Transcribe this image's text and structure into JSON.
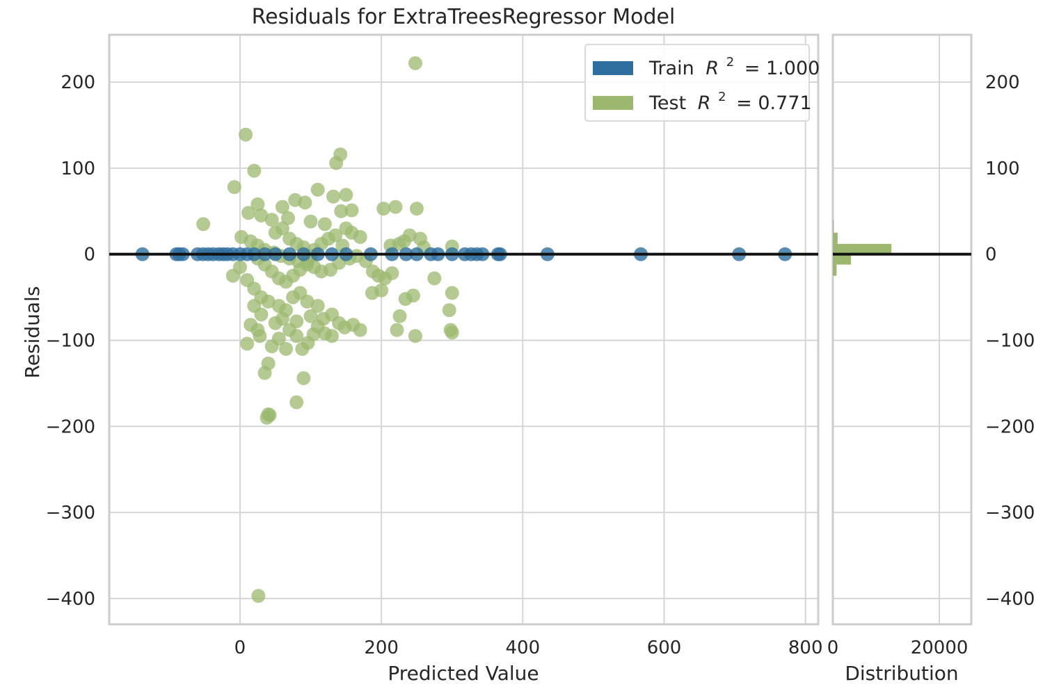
{
  "chart_data": {
    "type": "scatter",
    "title": "Residuals for ExtraTreesRegressor Model",
    "xlabel": "Predicted Value",
    "ylabel": "Residuals",
    "xlim": [
      -185,
      818
    ],
    "ylim": [
      -430,
      255
    ],
    "xticks": [
      "0",
      "200",
      "400",
      "600",
      "800"
    ],
    "xtick_values": [
      0,
      200,
      400,
      600,
      800
    ],
    "yticks": [
      "200",
      "100",
      "0",
      "−100",
      "−200",
      "−300",
      "−400"
    ],
    "ytick_values": [
      200,
      100,
      0,
      -100,
      -200,
      -300,
      -400
    ],
    "grid": true,
    "legend_position": "top-right",
    "colors": {
      "train": "#2f6f9f",
      "test": "#9bb86e",
      "zero_line": "#111111",
      "grid": "#d5d5d5"
    },
    "legend": [
      {
        "label": "Train",
        "r2_symbol": "R",
        "r2_exp": "2",
        "r2_value": "= 1.000",
        "color": "#2f6f9f"
      },
      {
        "label": "Test",
        "r2_symbol": "R",
        "r2_exp": "2",
        "r2_value": "= 0.771",
        "color": "#9bb86e"
      }
    ],
    "series": [
      {
        "name": "Train",
        "points": [
          [
            -138,
            0
          ],
          [
            -90,
            0
          ],
          [
            -86,
            0
          ],
          [
            -81,
            0
          ],
          [
            -60,
            0
          ],
          [
            -52,
            0
          ],
          [
            -45,
            0
          ],
          [
            -38,
            0
          ],
          [
            -30,
            0
          ],
          [
            -24,
            0
          ],
          [
            -18,
            0
          ],
          [
            -10,
            0
          ],
          [
            0,
            0
          ],
          [
            10,
            0
          ],
          [
            20,
            0
          ],
          [
            35,
            0
          ],
          [
            50,
            0
          ],
          [
            70,
            0
          ],
          [
            90,
            0
          ],
          [
            110,
            0
          ],
          [
            130,
            0
          ],
          [
            150,
            0
          ],
          [
            185,
            0
          ],
          [
            215,
            0
          ],
          [
            235,
            0
          ],
          [
            250,
            0
          ],
          [
            270,
            0
          ],
          [
            280,
            0
          ],
          [
            300,
            0
          ],
          [
            318,
            0
          ],
          [
            327,
            0
          ],
          [
            335,
            0
          ],
          [
            343,
            0
          ],
          [
            365,
            0
          ],
          [
            368,
            0
          ],
          [
            435,
            0
          ],
          [
            567,
            0
          ],
          [
            706,
            0
          ],
          [
            771,
            0
          ]
        ]
      },
      {
        "name": "Test",
        "points": [
          [
            248,
            222
          ],
          [
            8,
            139
          ],
          [
            20,
            97
          ],
          [
            -8,
            78
          ],
          [
            142,
            116
          ],
          [
            136,
            106
          ],
          [
            110,
            75
          ],
          [
            150,
            69
          ],
          [
            132,
            67
          ],
          [
            78,
            63
          ],
          [
            92,
            60
          ],
          [
            25,
            58
          ],
          [
            60,
            55
          ],
          [
            220,
            55
          ],
          [
            203,
            53
          ],
          [
            250,
            53
          ],
          [
            158,
            51
          ],
          [
            143,
            50
          ],
          [
            -52,
            35
          ],
          [
            12,
            48
          ],
          [
            30,
            45
          ],
          [
            45,
            40
          ],
          [
            68,
            42
          ],
          [
            100,
            38
          ],
          [
            120,
            35
          ],
          [
            150,
            30
          ],
          [
            158,
            25
          ],
          [
            170,
            20
          ],
          [
            240,
            22
          ],
          [
            255,
            18
          ],
          [
            232,
            15
          ],
          [
            213,
            10
          ],
          [
            225,
            12
          ],
          [
            260,
            8
          ],
          [
            300,
            9
          ],
          [
            2,
            20
          ],
          [
            15,
            15
          ],
          [
            25,
            10
          ],
          [
            35,
            5
          ],
          [
            48,
            2
          ],
          [
            58,
            -2
          ],
          [
            70,
            -5
          ],
          [
            82,
            -8
          ],
          [
            95,
            -12
          ],
          [
            105,
            -15
          ],
          [
            115,
            -20
          ],
          [
            128,
            -18
          ],
          [
            140,
            -10
          ],
          [
            155,
            -5
          ],
          [
            165,
            -2
          ],
          [
            178,
            -8
          ],
          [
            188,
            -20
          ],
          [
            196,
            -25
          ],
          [
            205,
            -28
          ],
          [
            215,
            -22
          ],
          [
            187,
            -45
          ],
          [
            200,
            -42
          ],
          [
            -10,
            -25
          ],
          [
            0,
            -15
          ],
          [
            10,
            -30
          ],
          [
            20,
            -40
          ],
          [
            30,
            -50
          ],
          [
            40,
            -55
          ],
          [
            55,
            -60
          ],
          [
            65,
            -65
          ],
          [
            75,
            -50
          ],
          [
            85,
            -45
          ],
          [
            95,
            -55
          ],
          [
            110,
            -60
          ],
          [
            118,
            -75
          ],
          [
            130,
            -70
          ],
          [
            140,
            -80
          ],
          [
            148,
            -85
          ],
          [
            160,
            -82
          ],
          [
            170,
            -88
          ],
          [
            300,
            -45
          ],
          [
            296,
            -65
          ],
          [
            298,
            -88
          ],
          [
            300,
            -91
          ],
          [
            234,
            -52
          ],
          [
            226,
            -72
          ],
          [
            275,
            -28
          ],
          [
            245,
            -48
          ],
          [
            222,
            -88
          ],
          [
            248,
            -95
          ],
          [
            10,
            -104
          ],
          [
            28,
            -95
          ],
          [
            45,
            -107
          ],
          [
            55,
            -98
          ],
          [
            65,
            -110
          ],
          [
            80,
            -95
          ],
          [
            88,
            -110
          ],
          [
            96,
            -103
          ],
          [
            104,
            -93
          ],
          [
            40,
            -127
          ],
          [
            35,
            -138
          ],
          [
            90,
            -144
          ],
          [
            38,
            -190
          ],
          [
            40,
            -186
          ],
          [
            42,
            -187
          ],
          [
            80,
            -172
          ],
          [
            26,
            -397
          ],
          [
            25,
            -5
          ],
          [
            35,
            -12
          ],
          [
            45,
            -20
          ],
          [
            55,
            -28
          ],
          [
            65,
            -32
          ],
          [
            75,
            -25
          ],
          [
            85,
            -18
          ],
          [
            95,
            -8
          ],
          [
            105,
            5
          ],
          [
            115,
            12
          ],
          [
            125,
            18
          ],
          [
            135,
            22
          ],
          [
            145,
            10
          ],
          [
            50,
            25
          ],
          [
            60,
            30
          ],
          [
            70,
            18
          ],
          [
            80,
            12
          ],
          [
            90,
            8
          ],
          [
            100,
            -2
          ],
          [
            20,
            -60
          ],
          [
            30,
            -70
          ],
          [
            50,
            -80
          ],
          [
            60,
            -75
          ],
          [
            70,
            -88
          ],
          [
            80,
            -78
          ],
          [
            100,
            -72
          ],
          [
            110,
            -84
          ],
          [
            120,
            -92
          ],
          [
            130,
            -95
          ],
          [
            15,
            -82
          ],
          [
            25,
            -88
          ]
        ]
      }
    ],
    "histogram": {
      "xlabel": "Distribution",
      "xticks": [
        "0",
        "20000"
      ],
      "xtick_values": [
        0,
        20000
      ],
      "xlim": [
        0,
        26000
      ],
      "bins": [
        {
          "lo": -25,
          "hi": -12,
          "count": 700
        },
        {
          "lo": -12,
          "hi": 0,
          "count": 3400
        },
        {
          "lo": 0,
          "hi": 12,
          "count": 11000
        },
        {
          "lo": 12,
          "hi": 25,
          "count": 900
        },
        {
          "lo": 25,
          "hi": 40,
          "count": 150
        }
      ]
    }
  }
}
